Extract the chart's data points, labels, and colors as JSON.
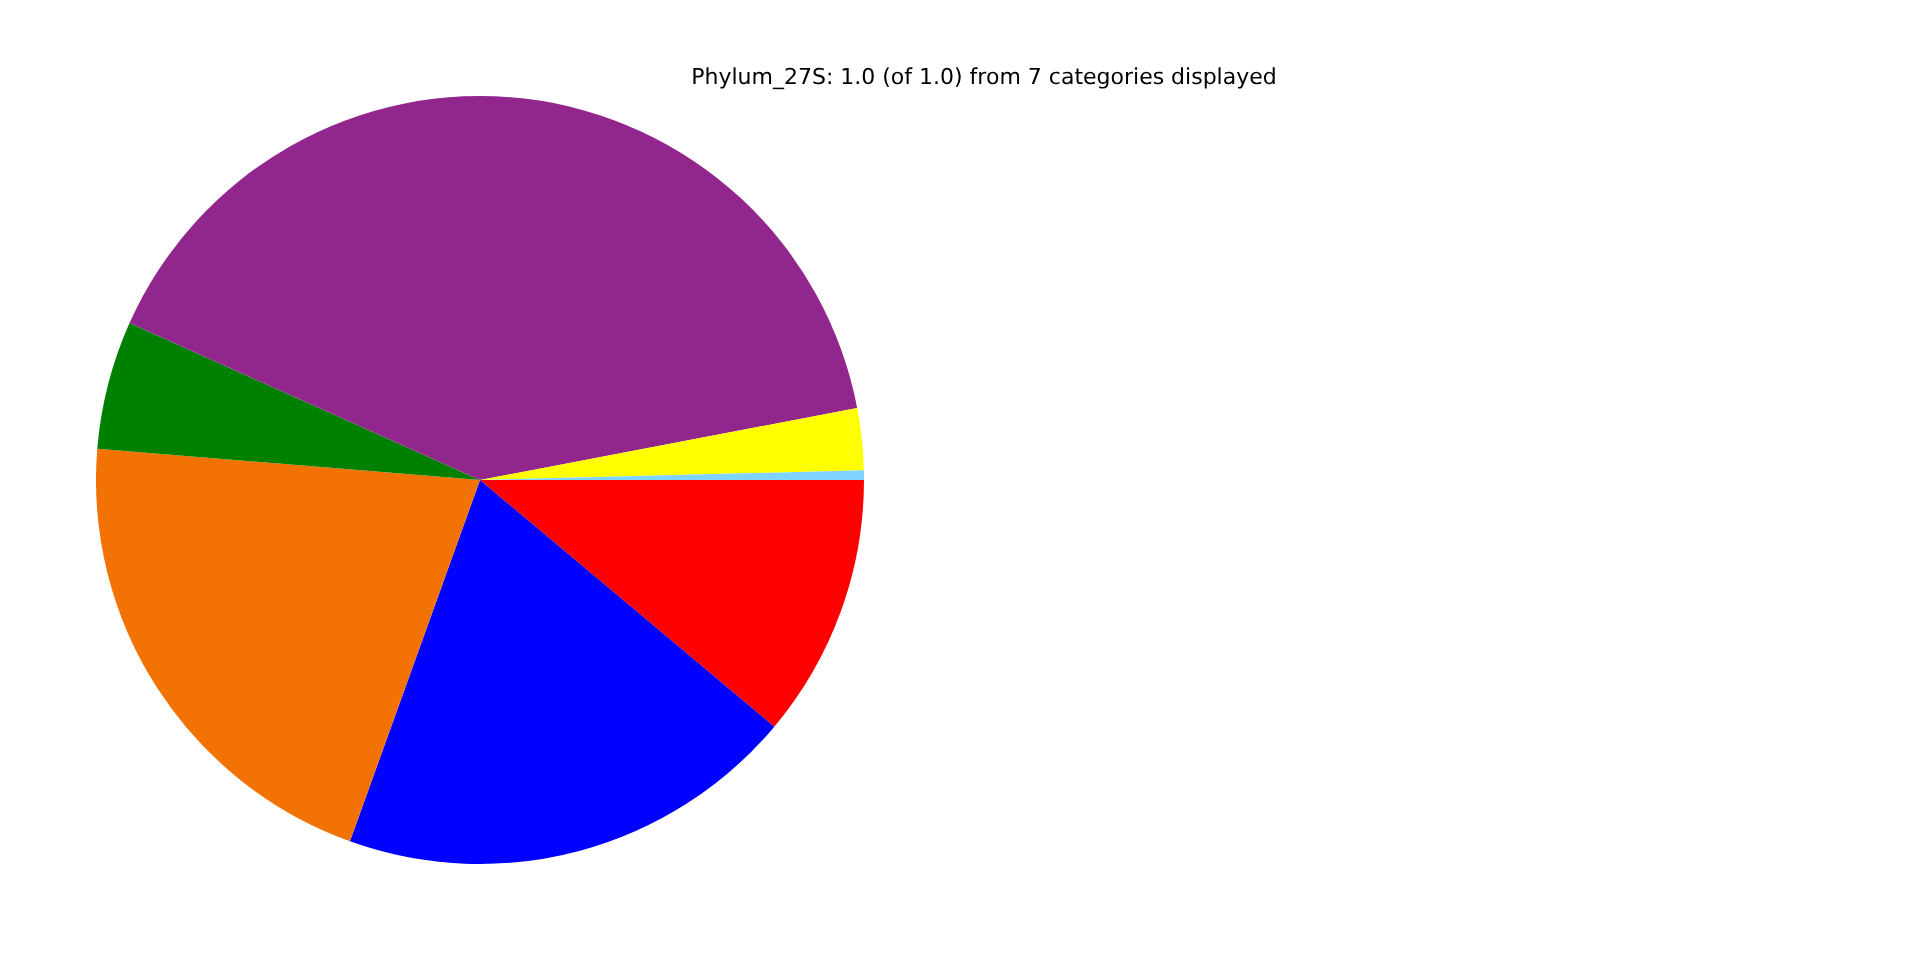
{
  "chart_data": {
    "type": "pie",
    "title": "Phylum_27S: 1.0 (of 1.0) from 7 categories displayed",
    "categories": [
      null,
      null,
      null,
      null,
      null,
      null,
      null
    ],
    "values": [
      11.1,
      19.4,
      20.8,
      5.4,
      40.3,
      2.6,
      0.4
    ],
    "colors": [
      "#ff0000",
      "#0000ff",
      "#f27304",
      "#008000",
      "#91278d",
      "#ffff00",
      "#7fd4ff"
    ],
    "legend": false
  }
}
